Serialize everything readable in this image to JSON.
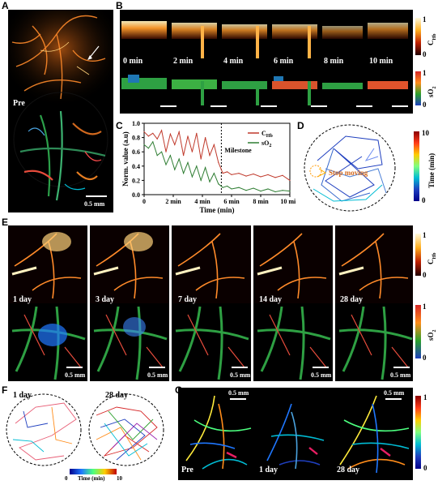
{
  "panels": {
    "A": "A",
    "B": "B",
    "C": "C",
    "D": "D",
    "E": "E",
    "F": "F",
    "G": "G"
  },
  "panelA": {
    "label": "Pre",
    "scalebar": "0.5 mm"
  },
  "panelB": {
    "times": [
      "0 min",
      "2 min",
      "4 min",
      "6 min",
      "8 min",
      "10 min"
    ],
    "cbar_top": {
      "label": "C",
      "sub": "Hb",
      "max": "1",
      "min": "0"
    },
    "cbar_bot": {
      "label": "sO",
      "sub": "2",
      "max": "1",
      "min": "0"
    }
  },
  "panelC": {
    "ylabel": "Norm. value (a.u)",
    "xlabel": "Time (min)",
    "milestone": "Milestone",
    "legend": [
      {
        "name": "C",
        "sub": "Hb",
        "color": "#c0392b"
      },
      {
        "name": "sO",
        "sub": "2",
        "color": "#2e7d32"
      }
    ]
  },
  "panelD": {
    "annotation": "Stop moving",
    "cbar": {
      "label": "Time (min)",
      "max": "10",
      "min": "0"
    }
  },
  "panelE": {
    "days": [
      "1 day",
      "3 day",
      "7 day",
      "14 day",
      "28 day"
    ],
    "scalebar": "0.5 mm",
    "cbar_top": {
      "label": "C",
      "sub": "Hb",
      "max": "1",
      "min": "0"
    },
    "cbar_bot": {
      "label": "sO",
      "sub": "2",
      "max": "1",
      "min": "0"
    }
  },
  "panelF": {
    "labels": [
      "1 day",
      "28 day"
    ],
    "cbar": {
      "label": "Time (min)",
      "min": "0",
      "max": "10"
    }
  },
  "panelG": {
    "labels": [
      "Pre",
      "1 day",
      "28 day"
    ],
    "scalebar": "0.5 mm",
    "cbar": {
      "max": "1",
      "min": "0"
    }
  },
  "chart_data": {
    "type": "line",
    "xlabel": "Time (min)",
    "ylabel": "Norm. value (a.u)",
    "xlim": [
      0,
      10
    ],
    "ylim": [
      0,
      1.0
    ],
    "xticks": [
      0,
      2,
      4,
      6,
      8,
      10
    ],
    "yticks": [
      0.0,
      0.2,
      0.4,
      0.6,
      0.8,
      1.0
    ],
    "milestone_x": 5.3,
    "series": [
      {
        "name": "CHb",
        "color": "#c0392b",
        "x": [
          0,
          0.3,
          0.6,
          0.9,
          1.2,
          1.5,
          1.8,
          2.1,
          2.4,
          2.7,
          3.0,
          3.3,
          3.6,
          3.9,
          4.2,
          4.5,
          4.8,
          5.1,
          5.4,
          5.7,
          6.0,
          6.5,
          7.0,
          7.5,
          8.0,
          8.5,
          9.0,
          9.5,
          10
        ],
        "values": [
          0.88,
          0.82,
          0.86,
          0.78,
          0.9,
          0.6,
          0.85,
          0.7,
          0.88,
          0.55,
          0.82,
          0.6,
          0.86,
          0.5,
          0.8,
          0.55,
          0.7,
          0.45,
          0.3,
          0.32,
          0.28,
          0.3,
          0.26,
          0.29,
          0.25,
          0.28,
          0.24,
          0.27,
          0.2
        ]
      },
      {
        "name": "sO2",
        "color": "#2e7d32",
        "x": [
          0,
          0.3,
          0.6,
          0.9,
          1.2,
          1.5,
          1.8,
          2.1,
          2.4,
          2.7,
          3.0,
          3.3,
          3.6,
          3.9,
          4.2,
          4.5,
          4.8,
          5.1,
          5.4,
          5.7,
          6.0,
          6.5,
          7.0,
          7.5,
          8.0,
          8.5,
          9.0,
          9.5,
          10
        ],
        "values": [
          0.7,
          0.65,
          0.74,
          0.55,
          0.6,
          0.42,
          0.55,
          0.35,
          0.5,
          0.3,
          0.45,
          0.25,
          0.4,
          0.2,
          0.38,
          0.18,
          0.3,
          0.15,
          0.1,
          0.12,
          0.08,
          0.1,
          0.06,
          0.09,
          0.05,
          0.08,
          0.04,
          0.06,
          0.05
        ]
      }
    ]
  }
}
